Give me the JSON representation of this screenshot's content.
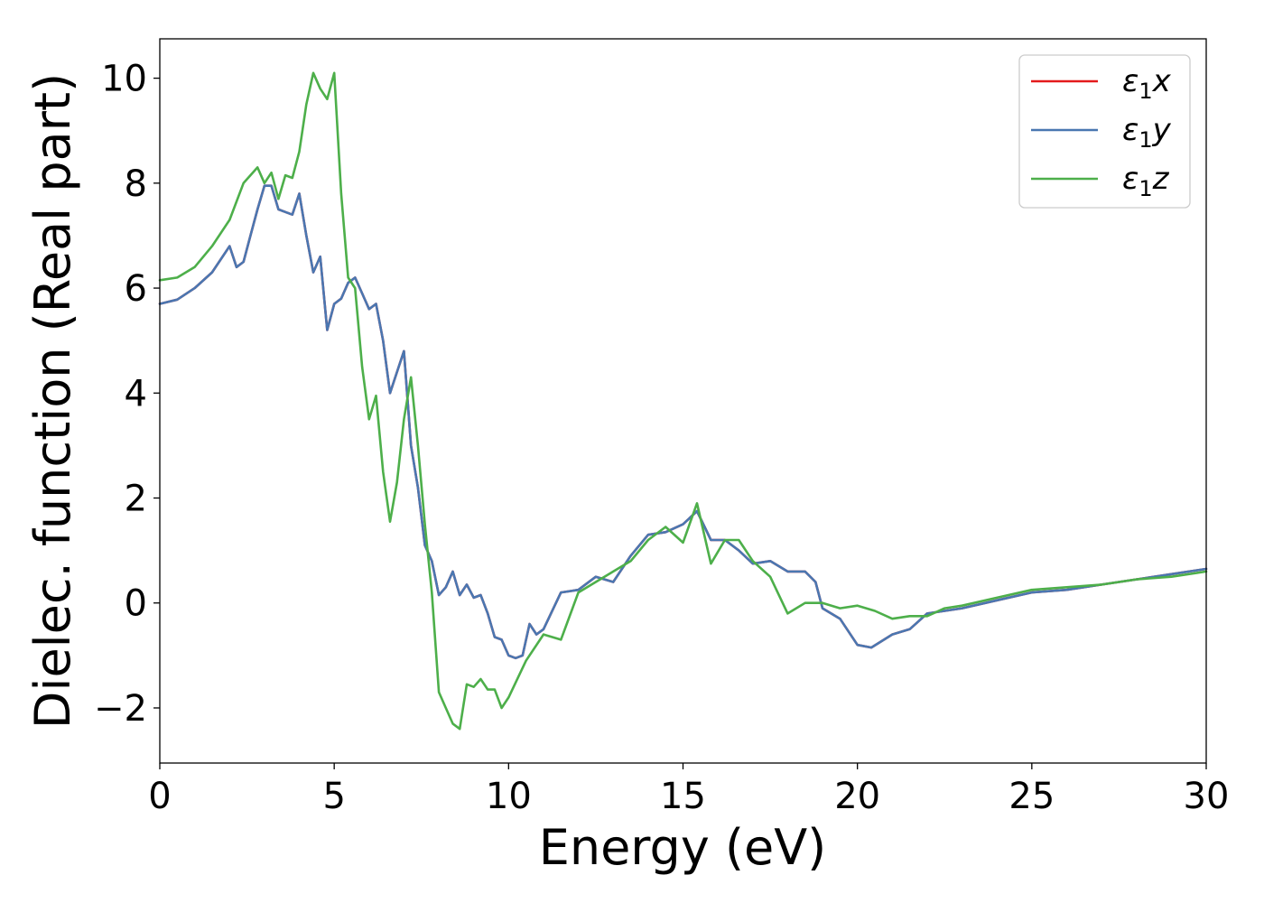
{
  "chart_data": {
    "type": "line",
    "xlabel": "Energy (eV)",
    "ylabel": "Dielec. function (Real part)",
    "xlim": [
      0,
      30
    ],
    "ylim": [
      -3.05,
      10.75
    ],
    "xticks": [
      0,
      5,
      10,
      15,
      20,
      25,
      30
    ],
    "xtick_labels": [
      "0",
      "5",
      "10",
      "15",
      "20",
      "25",
      "30"
    ],
    "yticks": [
      -2,
      0,
      2,
      4,
      6,
      8,
      10
    ],
    "ytick_labels": [
      "−2",
      "0",
      "2",
      "4",
      "6",
      "8",
      "10"
    ],
    "grid": false,
    "legend_position": "top-right",
    "series": [
      {
        "name": "ε1x",
        "legend_main": "ε",
        "legend_sub": "1",
        "legend_var": "x",
        "color": "#e41a1c",
        "x": [
          0,
          0.5,
          1,
          1.5,
          2,
          2.2,
          2.4,
          2.6,
          2.8,
          3,
          3.2,
          3.4,
          3.6,
          3.8,
          4,
          4.2,
          4.4,
          4.6,
          4.8,
          5,
          5.2,
          5.4,
          5.6,
          5.8,
          6,
          6.2,
          6.4,
          6.6,
          6.8,
          7,
          7.2,
          7.4,
          7.6,
          7.8,
          8,
          8.2,
          8.4,
          8.6,
          8.8,
          9,
          9.2,
          9.4,
          9.6,
          9.8,
          10,
          10.2,
          10.4,
          10.6,
          10.8,
          11,
          11.5,
          12,
          12.5,
          13,
          13.5,
          14,
          14.5,
          15,
          15.4,
          15.8,
          16.2,
          16.6,
          17,
          17.5,
          18,
          18.5,
          18.8,
          19,
          19.5,
          20,
          20.4,
          21,
          21.5,
          22,
          22.5,
          23,
          24,
          25,
          26,
          27,
          28,
          29,
          30
        ],
        "y": [
          5.7,
          5.78,
          6.0,
          6.3,
          6.8,
          6.4,
          6.5,
          7.0,
          7.5,
          7.95,
          7.95,
          7.5,
          7.45,
          7.4,
          7.8,
          7.0,
          6.3,
          6.6,
          5.2,
          5.7,
          5.8,
          6.1,
          6.2,
          5.9,
          5.6,
          5.7,
          5.0,
          4.0,
          4.4,
          4.8,
          3.0,
          2.2,
          1.1,
          0.8,
          0.15,
          0.3,
          0.6,
          0.15,
          0.35,
          0.1,
          0.15,
          -0.2,
          -0.65,
          -0.7,
          -1.0,
          -1.05,
          -1.0,
          -0.4,
          -0.6,
          -0.5,
          0.2,
          0.25,
          0.5,
          0.4,
          0.9,
          1.3,
          1.35,
          1.5,
          1.75,
          1.2,
          1.2,
          1.0,
          0.75,
          0.8,
          0.6,
          0.6,
          0.4,
          -0.1,
          -0.3,
          -0.8,
          -0.85,
          -0.6,
          -0.5,
          -0.2,
          -0.15,
          -0.1,
          0.05,
          0.2,
          0.25,
          0.35,
          0.45,
          0.55,
          0.65
        ]
      },
      {
        "name": "ε1y",
        "legend_main": "ε",
        "legend_sub": "1",
        "legend_var": "y",
        "color": "#4a77b1",
        "x": [
          0,
          0.5,
          1,
          1.5,
          2,
          2.2,
          2.4,
          2.6,
          2.8,
          3,
          3.2,
          3.4,
          3.6,
          3.8,
          4,
          4.2,
          4.4,
          4.6,
          4.8,
          5,
          5.2,
          5.4,
          5.6,
          5.8,
          6,
          6.2,
          6.4,
          6.6,
          6.8,
          7,
          7.2,
          7.4,
          7.6,
          7.8,
          8,
          8.2,
          8.4,
          8.6,
          8.8,
          9,
          9.2,
          9.4,
          9.6,
          9.8,
          10,
          10.2,
          10.4,
          10.6,
          10.8,
          11,
          11.5,
          12,
          12.5,
          13,
          13.5,
          14,
          14.5,
          15,
          15.4,
          15.8,
          16.2,
          16.6,
          17,
          17.5,
          18,
          18.5,
          18.8,
          19,
          19.5,
          20,
          20.4,
          21,
          21.5,
          22,
          22.5,
          23,
          24,
          25,
          26,
          27,
          28,
          29,
          30
        ],
        "y": [
          5.7,
          5.78,
          6.0,
          6.3,
          6.8,
          6.4,
          6.5,
          7.0,
          7.5,
          7.95,
          7.95,
          7.5,
          7.45,
          7.4,
          7.8,
          7.0,
          6.3,
          6.6,
          5.2,
          5.7,
          5.8,
          6.1,
          6.2,
          5.9,
          5.6,
          5.7,
          5.0,
          4.0,
          4.4,
          4.8,
          3.0,
          2.2,
          1.1,
          0.8,
          0.15,
          0.3,
          0.6,
          0.15,
          0.35,
          0.1,
          0.15,
          -0.2,
          -0.65,
          -0.7,
          -1.0,
          -1.05,
          -1.0,
          -0.4,
          -0.6,
          -0.5,
          0.2,
          0.25,
          0.5,
          0.4,
          0.9,
          1.3,
          1.35,
          1.5,
          1.75,
          1.2,
          1.2,
          1.0,
          0.75,
          0.8,
          0.6,
          0.6,
          0.4,
          -0.1,
          -0.3,
          -0.8,
          -0.85,
          -0.6,
          -0.5,
          -0.2,
          -0.15,
          -0.1,
          0.05,
          0.2,
          0.25,
          0.35,
          0.45,
          0.55,
          0.65
        ]
      },
      {
        "name": "ε1z",
        "legend_main": "ε",
        "legend_sub": "1",
        "legend_var": "z",
        "color": "#4daf4a",
        "x": [
          0,
          0.5,
          1,
          1.5,
          2,
          2.4,
          2.8,
          3.0,
          3.2,
          3.4,
          3.6,
          3.8,
          4.0,
          4.2,
          4.4,
          4.6,
          4.8,
          5.0,
          5.2,
          5.4,
          5.6,
          5.8,
          6.0,
          6.2,
          6.4,
          6.6,
          6.8,
          7.0,
          7.2,
          7.4,
          7.6,
          7.8,
          8.0,
          8.2,
          8.4,
          8.6,
          8.8,
          9.0,
          9.2,
          9.4,
          9.6,
          9.8,
          10.0,
          10.5,
          11.0,
          11.5,
          12.0,
          12.5,
          13.0,
          13.5,
          14.0,
          14.5,
          15.0,
          15.4,
          15.8,
          16.2,
          16.6,
          17.0,
          17.5,
          18.0,
          18.5,
          19.0,
          19.5,
          20.0,
          20.5,
          21.0,
          21.5,
          22.0,
          22.5,
          23.0,
          24.0,
          25.0,
          26.0,
          27.0,
          28.0,
          29.0,
          30.0
        ],
        "y": [
          6.15,
          6.2,
          6.4,
          6.8,
          7.3,
          8.0,
          8.3,
          8.0,
          8.2,
          7.7,
          8.15,
          8.1,
          8.6,
          9.5,
          10.1,
          9.8,
          9.6,
          10.1,
          7.8,
          6.2,
          6.0,
          4.5,
          3.5,
          3.95,
          2.5,
          1.55,
          2.3,
          3.5,
          4.3,
          3.0,
          1.5,
          0.2,
          -1.7,
          -2.0,
          -2.3,
          -2.4,
          -1.55,
          -1.6,
          -1.45,
          -1.65,
          -1.65,
          -2.0,
          -1.8,
          -1.1,
          -0.6,
          -0.7,
          0.2,
          0.4,
          0.6,
          0.8,
          1.2,
          1.45,
          1.15,
          1.9,
          0.75,
          1.2,
          1.2,
          0.8,
          0.5,
          -0.2,
          0.0,
          0.0,
          -0.1,
          -0.05,
          -0.15,
          -0.3,
          -0.25,
          -0.25,
          -0.1,
          -0.05,
          0.1,
          0.25,
          0.3,
          0.35,
          0.45,
          0.5,
          0.6
        ]
      }
    ]
  }
}
